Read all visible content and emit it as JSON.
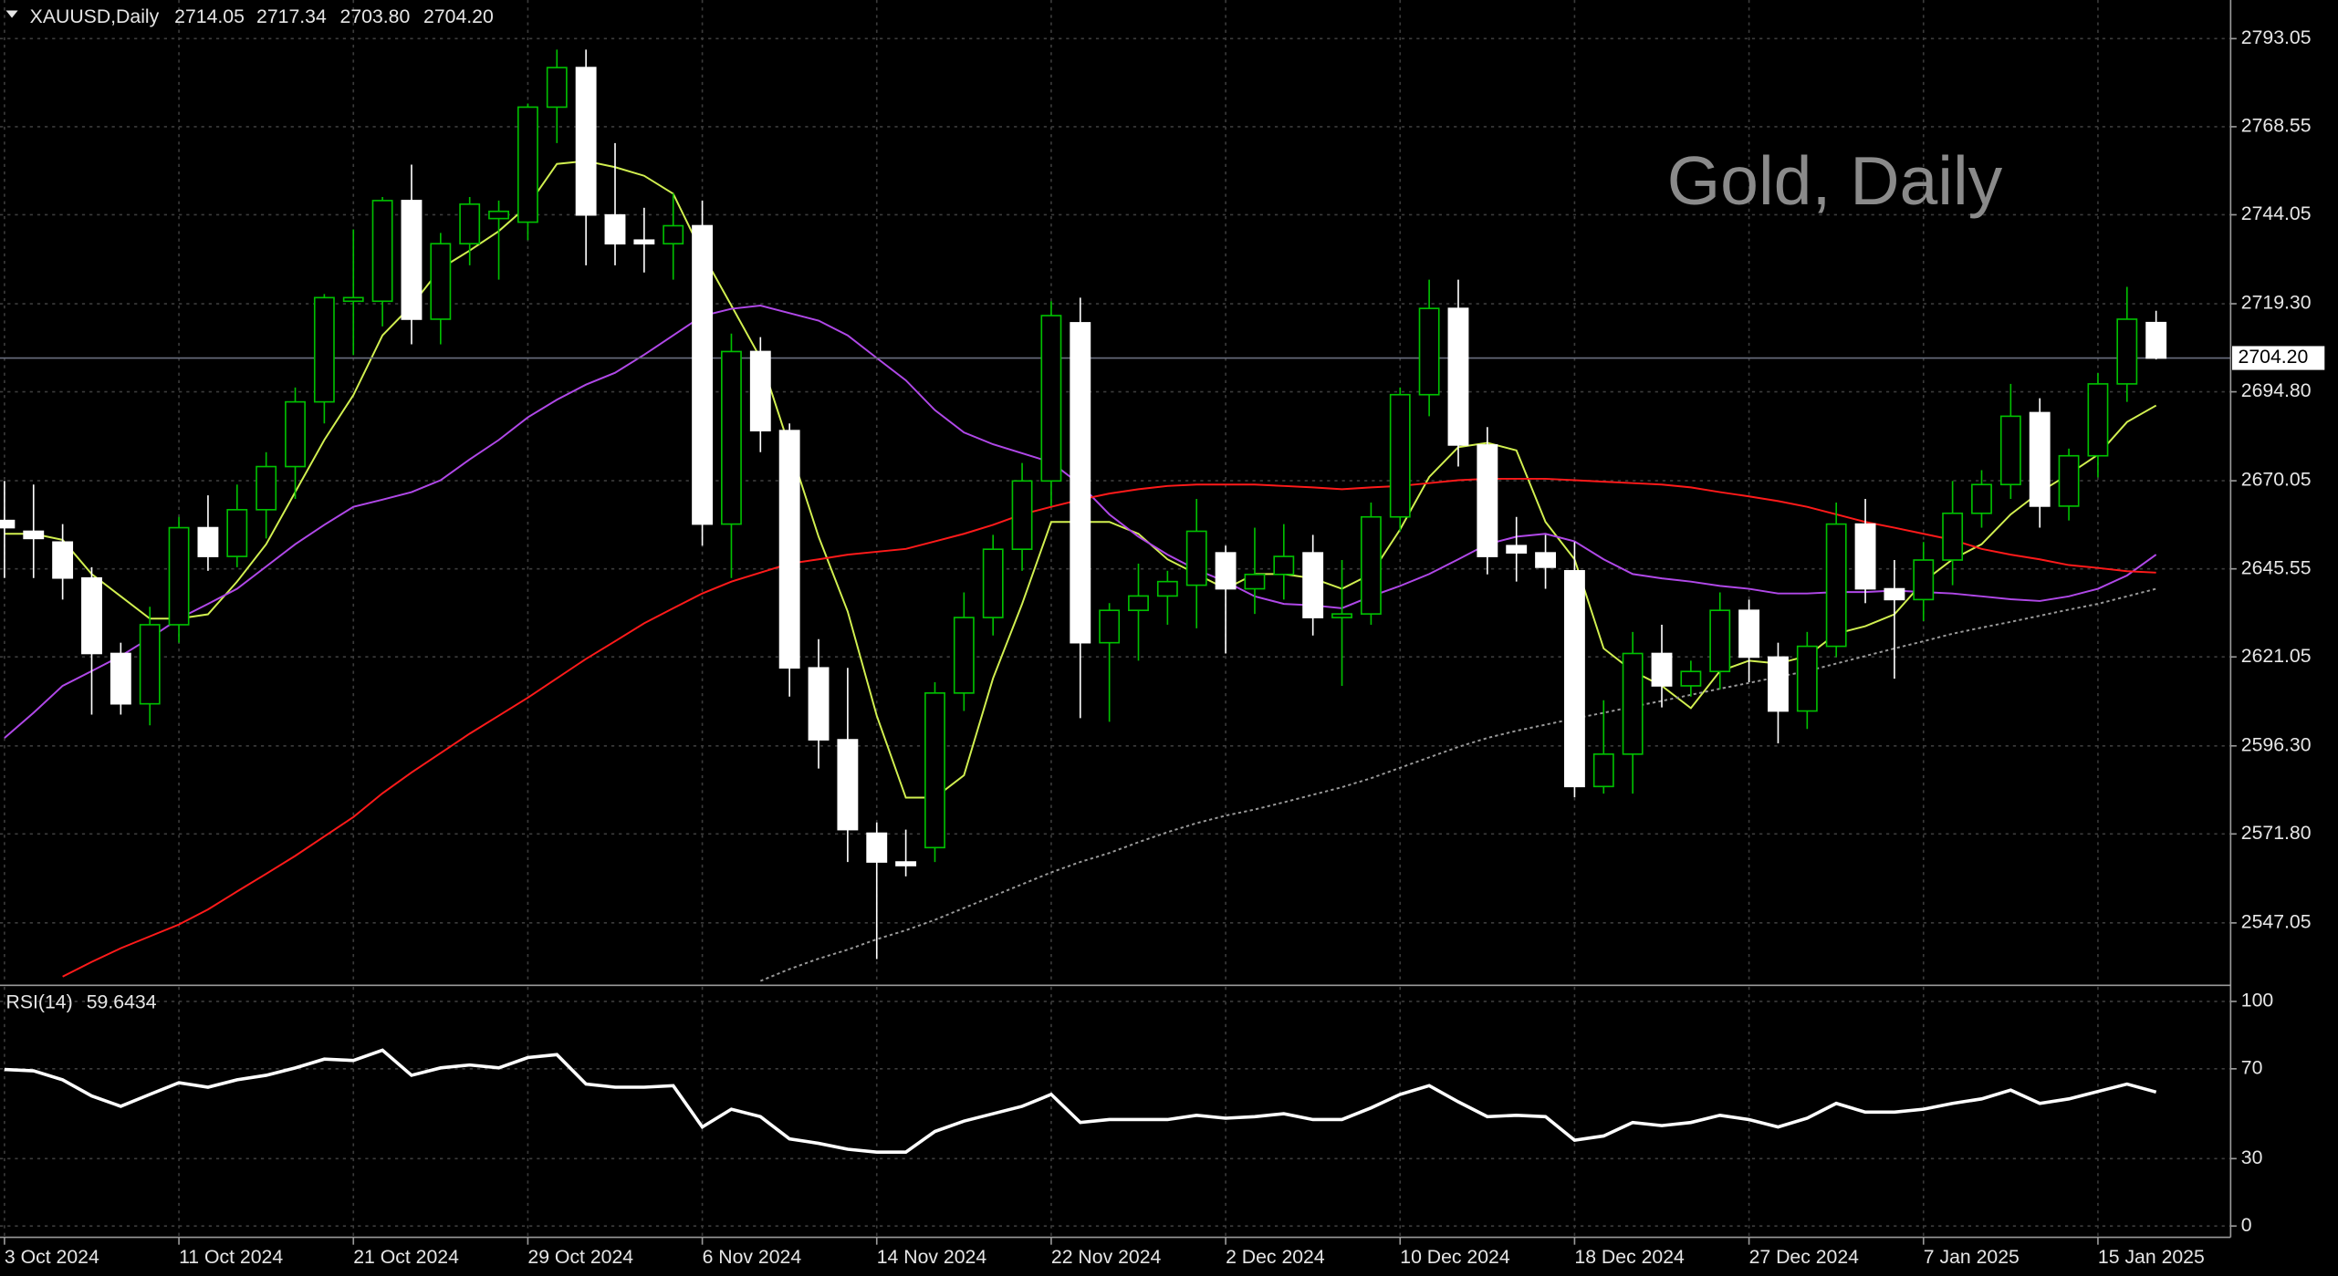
{
  "chart_data": [
    {
      "type": "candlestick",
      "title": "XAUUSD,Daily",
      "watermark": "Gold, Daily",
      "categories": [
        "3 Oct 2024",
        null,
        null,
        null,
        null,
        null,
        "11 Oct 2024",
        null,
        null,
        null,
        null,
        null,
        "21 Oct 2024",
        null,
        null,
        null,
        null,
        null,
        "29 Oct 2024",
        null,
        null,
        null,
        null,
        null,
        "6 Nov 2024",
        null,
        null,
        null,
        null,
        null,
        "14 Nov 2024",
        null,
        null,
        null,
        null,
        null,
        "22 Nov 2024",
        null,
        null,
        null,
        null,
        null,
        "2 Dec 2024",
        null,
        null,
        null,
        null,
        null,
        "10 Dec 2024",
        null,
        null,
        null,
        null,
        null,
        "18 Dec 2024",
        null,
        null,
        null,
        null,
        null,
        "27 Dec 2024",
        null,
        null,
        null,
        null,
        null,
        "7 Jan 2025",
        null,
        null,
        null,
        null,
        null,
        "15 Jan 2025",
        null,
        null
      ],
      "open": [
        2659,
        2656,
        2653,
        2643,
        2622,
        2608,
        2630,
        2657,
        2649,
        2662,
        2674,
        2692,
        2720,
        2720,
        2748,
        2715,
        2736,
        2743,
        2742,
        2774,
        2785,
        2744,
        2737,
        2736,
        2741,
        2658,
        2706,
        2684,
        2618,
        2598,
        2572,
        2564,
        2568,
        2611,
        2632,
        2651,
        2670,
        2714,
        2625,
        2634,
        2638,
        2641,
        2650,
        2640,
        2644,
        2650,
        2632,
        2633,
        2660,
        2694,
        2718,
        2680,
        2652,
        2650,
        2645,
        2585,
        2594,
        2622,
        2613,
        2617,
        2634,
        2621,
        2606,
        2624,
        2658,
        2640,
        2637,
        2648,
        2661,
        2669,
        2689,
        2663,
        2677,
        2697,
        2714.05
      ],
      "high": [
        2670,
        2669,
        2658,
        2646,
        2625,
        2635,
        2660,
        2666,
        2669,
        2678,
        2696,
        2722,
        2740,
        2749,
        2758,
        2739,
        2749,
        2748,
        2775,
        2790,
        2790,
        2764,
        2746,
        2750,
        2748,
        2711,
        2710,
        2686,
        2626,
        2618,
        2575,
        2573,
        2614,
        2639,
        2655,
        2675,
        2720,
        2721,
        2636,
        2647,
        2645,
        2665,
        2652,
        2657,
        2658,
        2655,
        2648,
        2664,
        2696,
        2726,
        2726,
        2685,
        2660,
        2655,
        2653,
        2609,
        2628,
        2630,
        2620,
        2639,
        2637,
        2625,
        2628,
        2664,
        2665,
        2648,
        2653,
        2670,
        2673,
        2697,
        2693,
        2679,
        2700,
        2724,
        2717.34
      ],
      "low": [
        2643,
        2643,
        2637,
        2605,
        2605,
        2602,
        2625,
        2645,
        2646,
        2654,
        2665,
        2686,
        2705,
        2713,
        2708,
        2708,
        2730,
        2726,
        2737,
        2764,
        2730,
        2730,
        2728,
        2726,
        2652,
        2643,
        2678,
        2610,
        2590,
        2564,
        2537,
        2560,
        2564,
        2606,
        2627,
        2645,
        2663,
        2604,
        2603,
        2620,
        2630,
        2629,
        2622,
        2633,
        2637,
        2627,
        2613,
        2630,
        2656,
        2688,
        2674,
        2644,
        2642,
        2640,
        2582,
        2583,
        2583,
        2607,
        2610,
        2612,
        2614,
        2597,
        2601,
        2621,
        2636,
        2615,
        2631,
        2641,
        2657,
        2665,
        2657,
        2659,
        2671,
        2692,
        2703.8
      ],
      "close": [
        2657,
        2654,
        2643,
        2622,
        2608,
        2630,
        2657,
        2649,
        2662,
        2674,
        2692,
        2721,
        2721,
        2748,
        2715,
        2736,
        2747,
        2745,
        2774,
        2785,
        2744,
        2736,
        2736,
        2741,
        2658,
        2706,
        2684,
        2618,
        2598,
        2573,
        2564,
        2563,
        2611,
        2632,
        2651,
        2670,
        2716,
        2625,
        2634,
        2638,
        2642,
        2656,
        2640,
        2644,
        2649,
        2632,
        2633,
        2660,
        2694,
        2718,
        2680,
        2649,
        2650,
        2646,
        2585,
        2594,
        2622,
        2613,
        2617,
        2634,
        2621,
        2606,
        2624,
        2658,
        2640,
        2637,
        2648,
        2661,
        2669,
        2688,
        2663,
        2677,
        2697,
        2715,
        2704.2
      ],
      "last_bar_labels": {
        "open": "2714.05",
        "high": "2717.34",
        "low": "2703.80",
        "close": "2704.20"
      },
      "ylim": [
        2530.1,
        2803.8
      ],
      "yticks": [
        2547.05,
        {
          "value": 2571.8,
          "label": "2571.80"
        },
        {
          "value": 2596.3,
          "label": "2596.30"
        },
        2621.05,
        2645.55,
        2670.05,
        {
          "value": 2694.8,
          "label": "2694.80"
        },
        {
          "value": 2719.3,
          "label": "2719.30"
        },
        2744.05,
        2768.55,
        2793.05
      ],
      "grid": true,
      "up_color": "#00c000",
      "down_color": "#ffffff",
      "series": [
        {
          "color": "#d2f050",
          "values": [
            2655.3,
            2655.3,
            2653.6,
            2644.1,
            2637.9,
            2631.7,
            2631.7,
            2632.9,
            2642.0,
            2652.4,
            2666.9,
            2681.4,
            2693.9,
            2710.5,
            2718.8,
            2729.1,
            2734.1,
            2739.5,
            2746.6,
            2758.2,
            2759.0,
            2757.3,
            2754.9,
            2749.9,
            2733.3,
            2718.8,
            2704.2,
            2679.4,
            2654.5,
            2633.7,
            2604.7,
            2581.9,
            2581.9,
            2588.1,
            2615.1,
            2635.8,
            2658.6,
            2658.6,
            2658.6,
            2655.3,
            2648.2,
            2644.1,
            2640.0,
            2644.1,
            2644.1,
            2642.9,
            2640.0,
            2644.1,
            2656.5,
            2671.1,
            2679.4,
            2680.6,
            2678.5,
            2658.6,
            2648.2,
            2623.4,
            2617.1,
            2613.0,
            2606.8,
            2617.1,
            2620.0,
            2619.2,
            2621.3,
            2627.5,
            2629.6,
            2632.9,
            2642.0,
            2648.2,
            2652.4,
            2660.7,
            2666.9,
            2671.9,
            2677.3,
            2686.4,
            2691.0
          ]
        },
        {
          "color": "#b048e8",
          "values": [
            2598.5,
            2605.5,
            2613.0,
            2617.1,
            2621.3,
            2626.3,
            2631.7,
            2635.8,
            2640.0,
            2646.2,
            2652.4,
            2657.8,
            2662.8,
            2664.8,
            2666.9,
            2670.2,
            2676.0,
            2681.4,
            2687.7,
            2692.6,
            2696.8,
            2700.1,
            2705.1,
            2710.5,
            2715.9,
            2717.9,
            2718.8,
            2716.7,
            2714.6,
            2710.5,
            2704.2,
            2698.0,
            2689.7,
            2683.5,
            2680.2,
            2677.7,
            2675.2,
            2669.0,
            2660.7,
            2654.5,
            2649.5,
            2645.3,
            2642.0,
            2637.9,
            2635.8,
            2635.4,
            2634.6,
            2637.9,
            2640.8,
            2644.1,
            2648.2,
            2652.4,
            2654.5,
            2655.3,
            2653.2,
            2648.2,
            2644.1,
            2642.9,
            2642.0,
            2640.8,
            2640.0,
            2638.7,
            2638.7,
            2639.1,
            2639.1,
            2639.5,
            2639.1,
            2638.7,
            2637.9,
            2637.1,
            2636.6,
            2637.9,
            2640.0,
            2643.7,
            2649.5
          ]
        },
        {
          "color": "#ff1a1a",
          "values": [
            null,
            null,
            2532.1,
            2536.2,
            2540.0,
            2543.3,
            2546.6,
            2550.8,
            2555.8,
            2560.7,
            2565.7,
            2571.1,
            2576.5,
            2583.1,
            2588.9,
            2594.3,
            2599.7,
            2604.7,
            2609.7,
            2615.1,
            2620.5,
            2625.4,
            2630.4,
            2634.6,
            2638.7,
            2642.0,
            2644.5,
            2647.0,
            2648.2,
            2649.5,
            2650.3,
            2651.1,
            2653.2,
            2655.3,
            2657.8,
            2660.7,
            2662.8,
            2664.8,
            2666.5,
            2667.7,
            2668.6,
            2669.0,
            2669.0,
            2669.0,
            2668.6,
            2668.2,
            2667.7,
            2668.2,
            2668.6,
            2669.4,
            2670.2,
            2670.6,
            2670.6,
            2670.6,
            2670.2,
            2669.8,
            2669.4,
            2669.0,
            2668.2,
            2666.9,
            2665.7,
            2664.4,
            2662.8,
            2660.7,
            2658.6,
            2657.0,
            2655.3,
            2653.6,
            2651.1,
            2649.5,
            2648.2,
            2646.6,
            2645.8,
            2644.9,
            2644.5
          ]
        },
        {
          "color": "#9a9a9a",
          "dashed": true,
          "values": [
            null,
            null,
            null,
            null,
            null,
            null,
            null,
            null,
            null,
            null,
            null,
            null,
            null,
            null,
            null,
            null,
            null,
            null,
            null,
            null,
            null,
            null,
            null,
            null,
            null,
            null,
            2530.9,
            2534.2,
            2537.1,
            2539.6,
            2542.5,
            2545.0,
            2547.9,
            2551.2,
            2554.5,
            2557.8,
            2561.1,
            2564.0,
            2566.5,
            2569.5,
            2572.3,
            2574.8,
            2576.9,
            2578.6,
            2580.6,
            2582.7,
            2584.8,
            2587.3,
            2590.2,
            2593.1,
            2596.0,
            2598.5,
            2600.5,
            2602.2,
            2603.9,
            2605.5,
            2607.2,
            2608.8,
            2610.5,
            2612.2,
            2613.8,
            2615.5,
            2617.1,
            2619.2,
            2621.3,
            2623.4,
            2625.4,
            2627.5,
            2629.2,
            2630.8,
            2632.5,
            2634.2,
            2635.8,
            2637.9,
            2640.0
          ]
        }
      ]
    },
    {
      "type": "line",
      "title": "RSI(14)",
      "ylim": [
        -5,
        106.5
      ],
      "yticks": [
        0,
        30,
        70,
        100
      ],
      "grid": true,
      "color": "#ffffff",
      "values": [
        69.7,
        69.1,
        65.1,
        57.9,
        53.3,
        58.6,
        63.8,
        61.8,
        65.1,
        67.1,
        70.4,
        74.3,
        73.7,
        78.3,
        67.1,
        70.4,
        71.7,
        70.4,
        75.0,
        76.3,
        63.2,
        61.8,
        61.8,
        62.5,
        44.1,
        52.0,
        48.7,
        38.8,
        36.8,
        34.2,
        32.9,
        32.9,
        42.1,
        46.7,
        50.0,
        53.3,
        58.6,
        46.1,
        47.4,
        47.4,
        47.4,
        49.3,
        48.0,
        48.7,
        50.0,
        47.4,
        47.4,
        52.6,
        58.6,
        62.5,
        55.3,
        48.7,
        49.3,
        48.7,
        38.2,
        40.1,
        46.1,
        44.7,
        46.1,
        49.3,
        47.4,
        44.1,
        48.0,
        54.6,
        50.7,
        50.7,
        52.0,
        54.6,
        56.6,
        60.5,
        54.6,
        56.6,
        59.9,
        63.2,
        59.6434
      ]
    }
  ]
}
